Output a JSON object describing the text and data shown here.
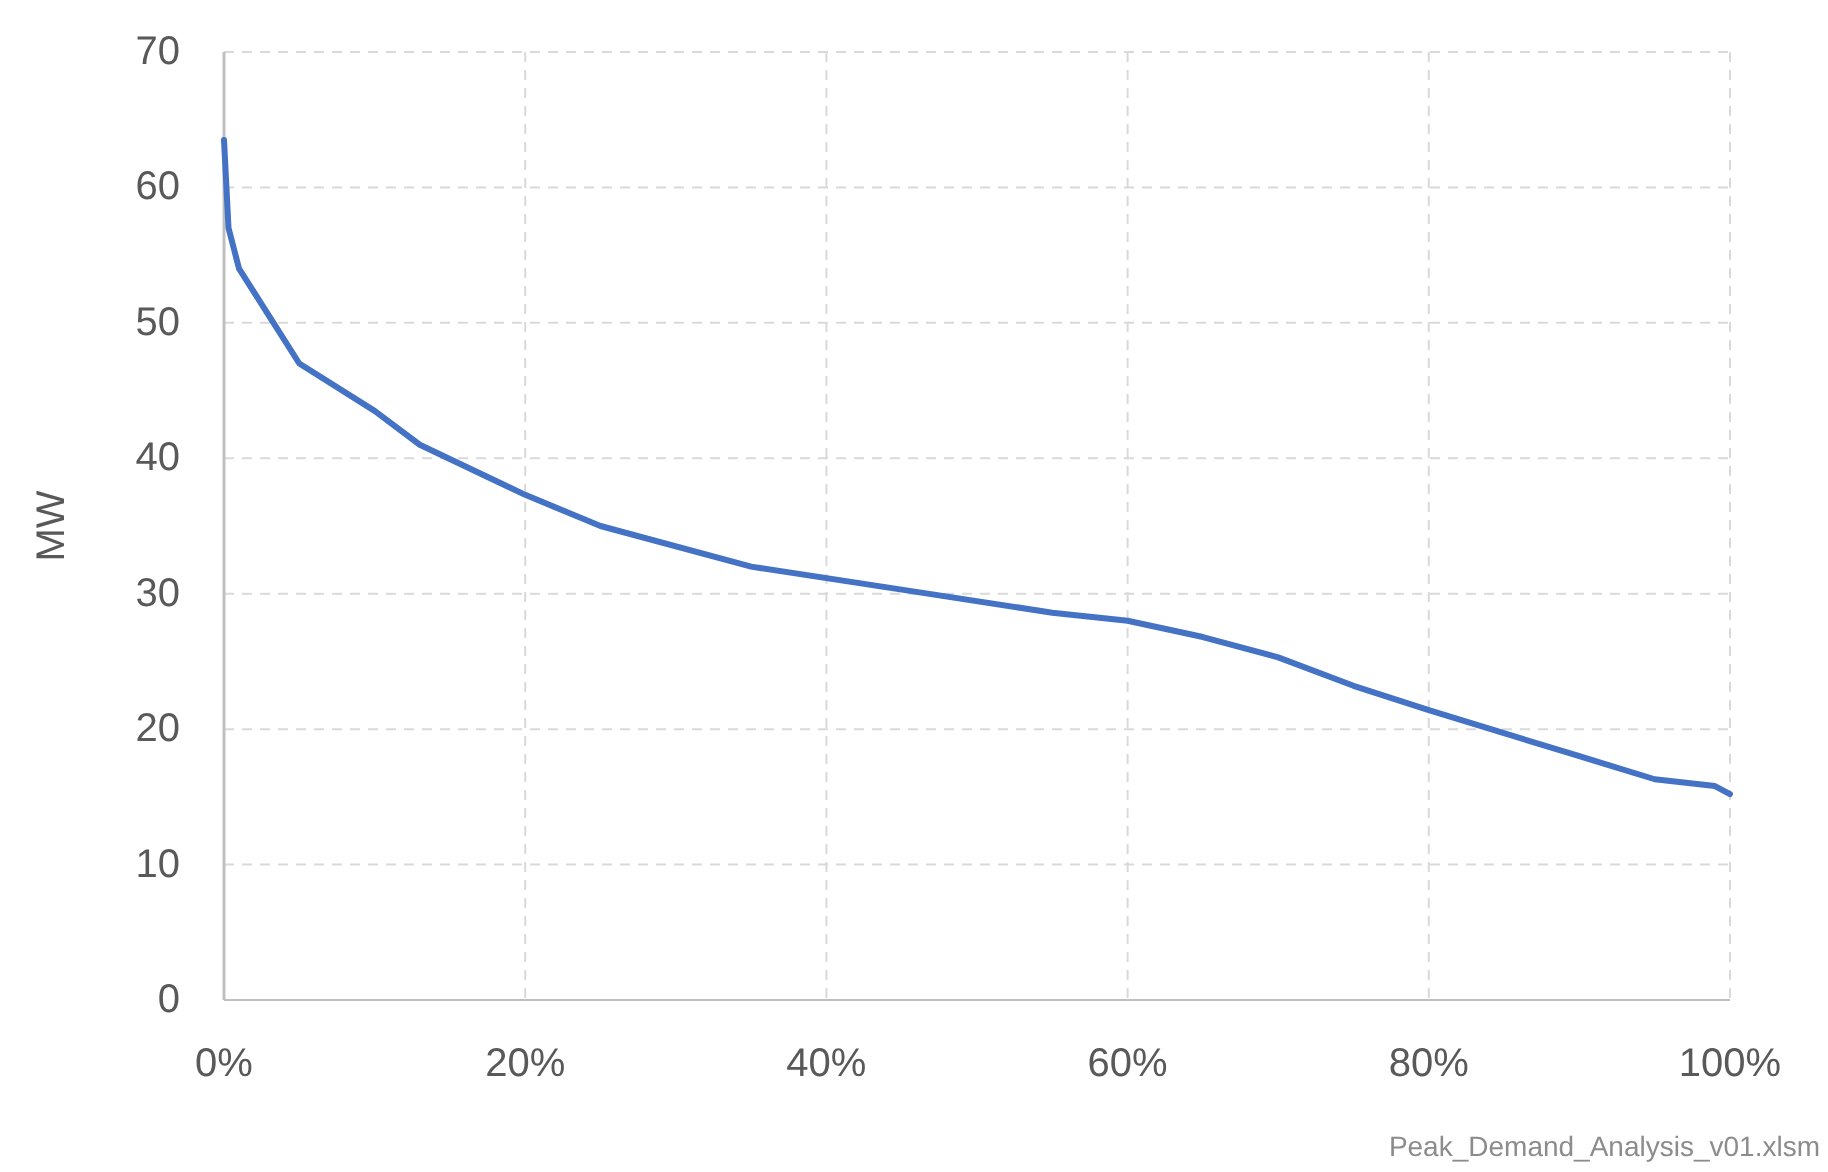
{
  "chart_data": {
    "type": "line",
    "ylabel": "MW",
    "x": [
      0,
      0.3,
      1,
      3,
      5,
      10,
      13,
      20,
      25,
      35,
      45,
      55,
      60,
      65,
      70,
      75,
      80,
      90,
      95,
      99,
      100
    ],
    "series": [
      {
        "color": "#4472c4",
        "values": [
          63.5,
          57,
          54,
          50.5,
          47,
          43.5,
          41,
          37.3,
          35,
          32,
          30.3,
          28.6,
          28,
          26.8,
          25.3,
          23.2,
          21.4,
          18,
          16.3,
          15.8,
          15.2
        ]
      }
    ],
    "xlim": [
      0,
      100
    ],
    "xticks": [
      {
        "value": 0,
        "label": "0%"
      },
      {
        "value": 20,
        "label": "20%"
      },
      {
        "value": 40,
        "label": "40%"
      },
      {
        "value": 60,
        "label": "60%"
      },
      {
        "value": 80,
        "label": "80%"
      },
      {
        "value": 100,
        "label": "100%"
      }
    ],
    "ylim": [
      0,
      70
    ],
    "yticks": [
      0,
      10,
      20,
      30,
      40,
      50,
      60,
      70
    ],
    "grid": true,
    "marker": "none",
    "line_style": "solid",
    "annotations": [
      "Peak_Demand_Analysis_v01.xlsm"
    ]
  }
}
